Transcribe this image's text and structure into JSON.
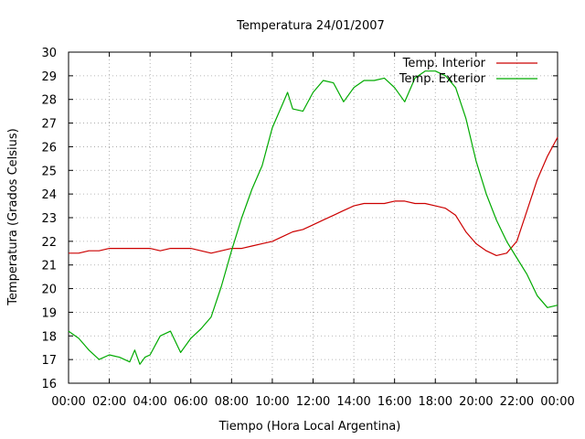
{
  "chart_data": {
    "type": "line",
    "title": "Temperatura 24/01/2007",
    "xlabel": "Tiempo (Hora Local Argentina)",
    "ylabel": "Temperatura (Grados Celsius)",
    "xlim": [
      0,
      24
    ],
    "ylim": [
      16,
      30
    ],
    "x_ticks": [
      "00:00",
      "02:00",
      "04:00",
      "06:00",
      "08:00",
      "10:00",
      "12:00",
      "14:00",
      "16:00",
      "18:00",
      "20:00",
      "22:00",
      "00:00"
    ],
    "y_ticks": [
      "16",
      "17",
      "18",
      "19",
      "20",
      "21",
      "22",
      "23",
      "24",
      "25",
      "26",
      "27",
      "28",
      "29",
      "30"
    ],
    "grid": true,
    "legend_position": "top-right",
    "series": [
      {
        "name": "Temp. Interior",
        "color": "#cc0000",
        "x": [
          0,
          0.5,
          1,
          1.5,
          2,
          2.5,
          3,
          3.5,
          4,
          4.5,
          5,
          5.5,
          6,
          6.5,
          7,
          7.5,
          8,
          8.5,
          9,
          9.5,
          10,
          10.5,
          11,
          11.5,
          12,
          12.5,
          13,
          13.5,
          14,
          14.5,
          15,
          15.5,
          16,
          16.5,
          17,
          17.5,
          18,
          18.5,
          19,
          19.5,
          20,
          20.5,
          21,
          21.5,
          22,
          22.5,
          23,
          23.5,
          24
        ],
        "values": [
          21.5,
          21.5,
          21.6,
          21.6,
          21.7,
          21.7,
          21.7,
          21.7,
          21.7,
          21.6,
          21.7,
          21.7,
          21.7,
          21.6,
          21.5,
          21.6,
          21.7,
          21.7,
          21.8,
          21.9,
          22.0,
          22.2,
          22.4,
          22.5,
          22.7,
          22.9,
          23.1,
          23.3,
          23.5,
          23.6,
          23.6,
          23.6,
          23.7,
          23.7,
          23.6,
          23.6,
          23.5,
          23.4,
          23.1,
          22.4,
          21.9,
          21.6,
          21.4,
          21.5,
          22.0,
          23.3,
          24.6,
          25.6,
          26.4
        ]
      },
      {
        "name": "Temp. Exterior",
        "color": "#00aa00",
        "x": [
          0,
          0.5,
          1,
          1.5,
          2,
          2.5,
          3,
          3.25,
          3.5,
          3.75,
          4,
          4.5,
          5,
          5.5,
          6,
          6.5,
          7,
          7.5,
          8,
          8.5,
          9,
          9.5,
          10,
          10.5,
          10.75,
          11,
          11.5,
          12,
          12.5,
          13,
          13.5,
          14,
          14.5,
          15,
          15.5,
          16,
          16.5,
          17,
          17.5,
          18,
          18.5,
          19,
          19.5,
          20,
          20.5,
          21,
          21.5,
          22,
          22.5,
          23,
          23.5,
          24
        ],
        "values": [
          18.2,
          17.9,
          17.4,
          17.0,
          17.2,
          17.1,
          16.9,
          17.4,
          16.8,
          17.1,
          17.2,
          18.0,
          18.2,
          17.3,
          17.9,
          18.3,
          18.8,
          20.1,
          21.6,
          23.0,
          24.2,
          25.2,
          26.8,
          27.8,
          28.3,
          27.6,
          27.5,
          28.3,
          28.8,
          28.7,
          27.9,
          28.5,
          28.8,
          28.8,
          28.9,
          28.5,
          27.9,
          28.9,
          29.2,
          29.2,
          29.0,
          28.5,
          27.2,
          25.4,
          24.0,
          22.9,
          22.0,
          21.3,
          20.6,
          19.7,
          19.2,
          19.3
        ]
      }
    ]
  }
}
